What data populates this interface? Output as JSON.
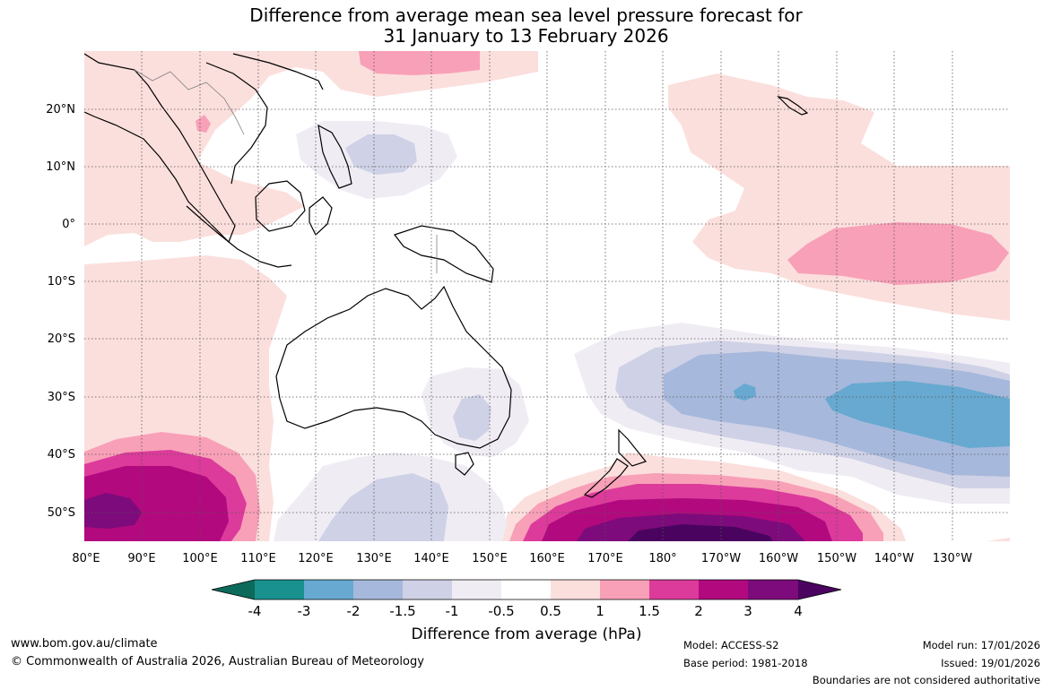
{
  "title": {
    "line1": "Difference from average mean sea level pressure forecast for",
    "line2": "31 January to 13 February 2026"
  },
  "map": {
    "lon_ticks": [
      "80°E",
      "90°E",
      "100°E",
      "110°E",
      "120°E",
      "130°E",
      "140°E",
      "150°E",
      "160°E",
      "170°E",
      "180°",
      "170°W",
      "160°W",
      "150°W",
      "140°W",
      "130°W"
    ],
    "lat_ticks": [
      "20°N",
      "10°N",
      "0°",
      "10°S",
      "20°S",
      "30°S",
      "40°S",
      "50°S"
    ]
  },
  "colorbar": {
    "label": "Difference from average (hPa)",
    "ticks": [
      "-4",
      "-3",
      "-2",
      "-1.5",
      "-1",
      "-0.5",
      "0.5",
      "1",
      "1.5",
      "2",
      "3",
      "4"
    ],
    "colors": {
      "under": "#0b6a5a",
      "b1": "#19918f",
      "b2": "#67a9d0",
      "b3": "#a6b8db",
      "b4": "#cfd1e6",
      "b5": "#f0ecf4",
      "b6": "#ffffff",
      "b7": "#fbdfdd",
      "b8": "#f8a0b8",
      "b9": "#dc3b9b",
      "b10": "#b2097f",
      "b11": "#7d0b7b",
      "over": "#4a045f"
    }
  },
  "footer": {
    "url": "www.bom.gov.au/climate",
    "copyright": "© Commonwealth of Australia 2026, Australian Bureau of Meteorology",
    "model": "Model: ACCESS-S2",
    "base_period": "Base period: 1981-2018",
    "model_run": "Model run: 17/01/2026",
    "issued": "Issued: 19/01/2026",
    "disclaimer": "Boundaries are not considered authoritative"
  }
}
